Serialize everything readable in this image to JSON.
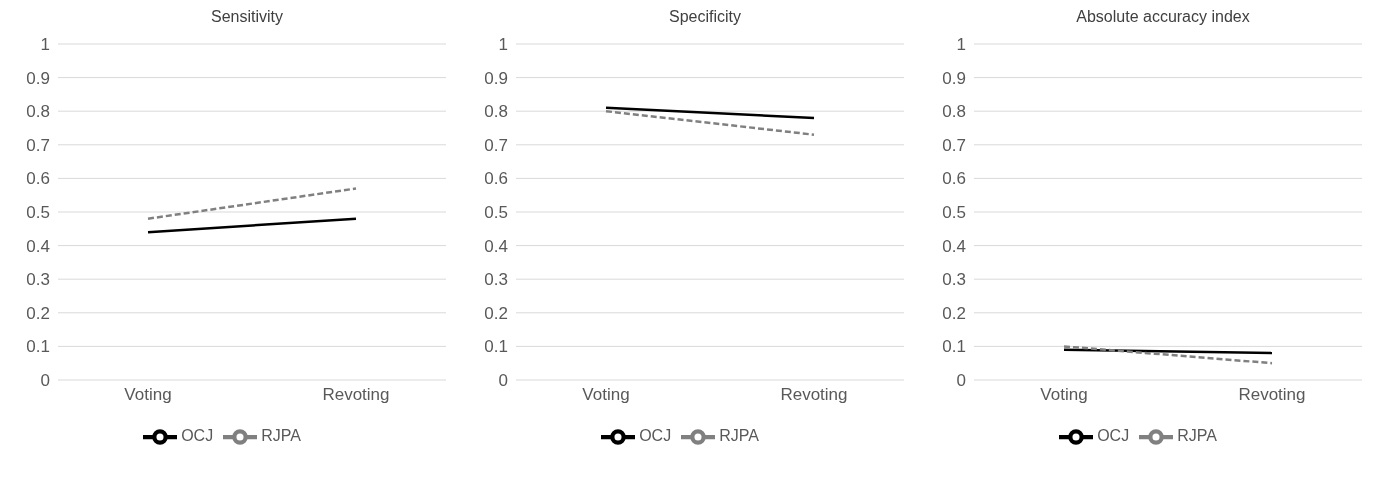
{
  "chart_data": [
    {
      "type": "line",
      "title": "Sensitivity",
      "categories": [
        "Voting",
        "Revoting"
      ],
      "series": [
        {
          "name": "OCJ",
          "color": "#000000",
          "line_style": "solid",
          "values": [
            0.44,
            0.48
          ]
        },
        {
          "name": "RJPA",
          "color": "#808080",
          "line_style": "dashed",
          "values": [
            0.48,
            0.57
          ]
        }
      ],
      "ylim": [
        0,
        1
      ],
      "yticks": [
        0,
        0.1,
        0.2,
        0.3,
        0.4,
        0.5,
        0.6,
        0.7,
        0.8,
        0.9,
        1
      ],
      "grid": "y",
      "legend": "bottom",
      "marker": "none"
    },
    {
      "type": "line",
      "title": "Specificity",
      "categories": [
        "Voting",
        "Revoting"
      ],
      "series": [
        {
          "name": "OCJ",
          "color": "#000000",
          "line_style": "solid",
          "values": [
            0.81,
            0.78
          ]
        },
        {
          "name": "RJPA",
          "color": "#808080",
          "line_style": "dashed",
          "values": [
            0.8,
            0.73
          ]
        }
      ],
      "ylim": [
        0,
        1
      ],
      "yticks": [
        0,
        0.1,
        0.2,
        0.3,
        0.4,
        0.5,
        0.6,
        0.7,
        0.8,
        0.9,
        1
      ],
      "grid": "y",
      "legend": "bottom",
      "marker": "none"
    },
    {
      "type": "line",
      "title": "Absolute accuracy index",
      "categories": [
        "Voting",
        "Revoting"
      ],
      "series": [
        {
          "name": "OCJ",
          "color": "#000000",
          "line_style": "solid",
          "values": [
            0.09,
            0.08
          ]
        },
        {
          "name": "RJPA",
          "color": "#808080",
          "line_style": "dashed",
          "values": [
            0.1,
            0.05
          ]
        }
      ],
      "ylim": [
        0,
        1
      ],
      "yticks": [
        0,
        0.1,
        0.2,
        0.3,
        0.4,
        0.5,
        0.6,
        0.7,
        0.8,
        0.9,
        1
      ],
      "grid": "y",
      "legend": "bottom",
      "marker": "none"
    }
  ]
}
